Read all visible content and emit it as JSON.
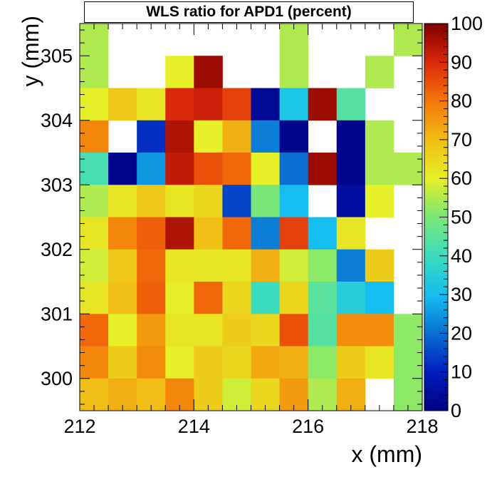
{
  "chart_data": {
    "type": "heatmap",
    "title": "WLS ratio for APD1 (percent)",
    "xlabel": "x (mm)",
    "ylabel": "y (mm)",
    "xlim": [
      212,
      218
    ],
    "ylim": [
      299.5,
      305.5
    ],
    "x_ticks": [
      212,
      214,
      216,
      218
    ],
    "y_ticks": [
      300,
      301,
      302,
      303,
      304,
      305
    ],
    "x_bin_centers": [
      212.25,
      212.75,
      213.25,
      213.75,
      214.25,
      214.75,
      215.25,
      215.75,
      216.25,
      216.75,
      217.25,
      217.75
    ],
    "y_bin_centers": [
      305.25,
      304.75,
      304.25,
      303.75,
      303.25,
      302.75,
      302.25,
      301.75,
      301.25,
      300.75,
      300.25,
      299.75
    ],
    "values": [
      [
        55,
        null,
        null,
        null,
        null,
        null,
        null,
        55,
        null,
        null,
        null,
        55
      ],
      [
        55,
        null,
        null,
        60,
        97,
        null,
        null,
        55,
        null,
        null,
        55,
        null
      ],
      [
        60,
        68,
        62,
        90,
        92,
        87,
        3,
        32,
        97,
        44,
        null,
        null
      ],
      [
        78,
        null,
        12,
        95,
        60,
        72,
        22,
        2,
        null,
        2,
        55,
        null
      ],
      [
        42,
        2,
        25,
        93,
        85,
        82,
        60,
        20,
        97,
        2,
        55,
        55
      ],
      [
        55,
        62,
        68,
        62,
        65,
        15,
        50,
        30,
        null,
        5,
        60,
        null
      ],
      [
        62,
        78,
        83,
        95,
        70,
        82,
        22,
        87,
        30,
        62,
        null,
        null
      ],
      [
        58,
        68,
        82,
        62,
        62,
        62,
        72,
        58,
        52,
        22,
        67,
        null
      ],
      [
        62,
        70,
        83,
        60,
        82,
        65,
        40,
        65,
        45,
        35,
        30,
        null
      ],
      [
        82,
        60,
        75,
        62,
        62,
        67,
        65,
        85,
        44,
        77,
        77,
        52
      ],
      [
        78,
        67,
        77,
        60,
        67,
        65,
        73,
        72,
        52,
        67,
        62,
        52
      ],
      [
        70,
        72,
        70,
        78,
        67,
        58,
        65,
        75,
        55,
        72,
        null,
        52
      ]
    ],
    "colorbar": {
      "range": [
        0,
        100
      ],
      "ticks": [
        0,
        10,
        20,
        30,
        40,
        50,
        60,
        70,
        80,
        90,
        100
      ]
    },
    "grid": false,
    "legend": "colorbar-right"
  }
}
